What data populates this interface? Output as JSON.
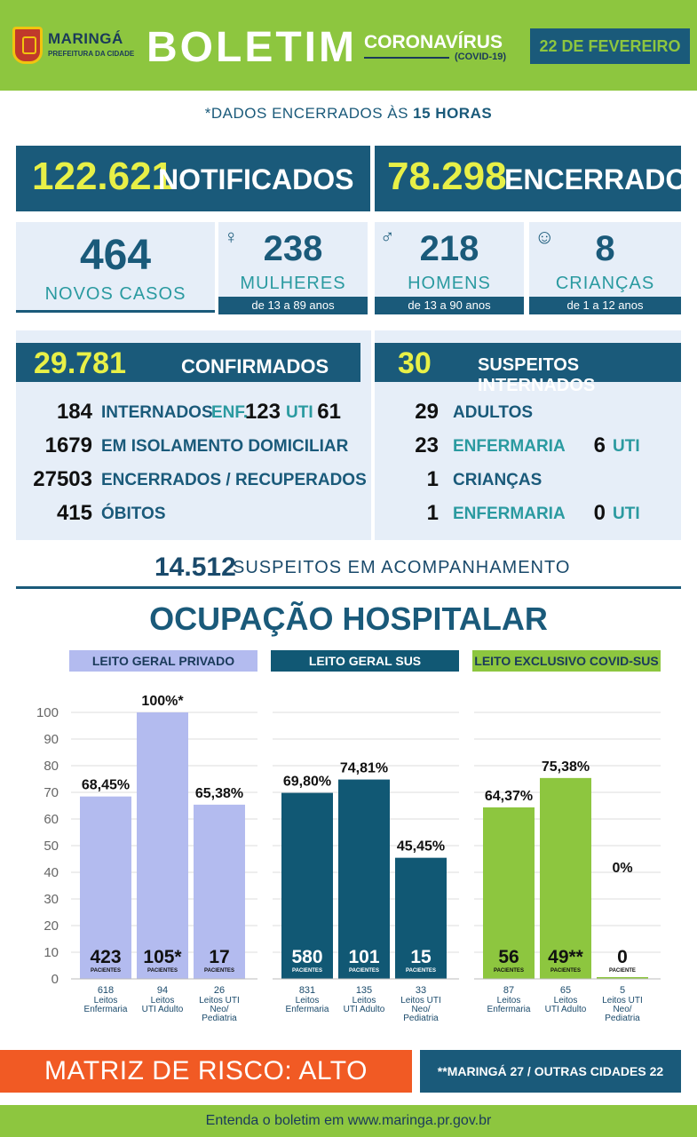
{
  "header": {
    "city": "MARINGÁ",
    "prefeitura": "PREFEITURA DA CIDADE",
    "title": "BOLETIM",
    "subtitle": "CORONAVÍRUS",
    "subtitle2": "(COVID-19)",
    "date": "22 DE FEVEREIRO"
  },
  "dados_prefix": "*DADOS ENCERRADOS ÀS ",
  "dados_hora": "15 HORAS",
  "notificados": {
    "value": "122.621",
    "label": "NOTIFICADOS"
  },
  "encerrados": {
    "value": "78.298",
    "label": "ENCERRADOS"
  },
  "novos": {
    "value": "464",
    "label": "NOVOS CASOS"
  },
  "mulheres": {
    "value": "238",
    "label": "MULHERES",
    "age": "de 13 a 89 anos"
  },
  "homens": {
    "value": "218",
    "label": "HOMENS",
    "age": "de 13 a 90 anos"
  },
  "criancas": {
    "value": "8",
    "label": "CRIANÇAS",
    "age": "de 1 a 12 anos"
  },
  "confirmados": {
    "value": "29.781",
    "label": "CONFIRMADOS",
    "rows": [
      {
        "n": "184",
        "t": "INTERNADOS"
      },
      {
        "n": "1679",
        "t": "EM ISOLAMENTO DOMICILIAR"
      },
      {
        "n": "27503",
        "t": "ENCERRADOS / RECUPERADOS"
      },
      {
        "n": "415",
        "t": "ÓBITOS"
      }
    ],
    "enf_label": "ENF.",
    "enf_value": "123",
    "uti_label": "UTI",
    "uti_value": "61"
  },
  "suspeitos": {
    "value": "30",
    "label": "SUSPEITOS INTERNADOS",
    "rows": [
      {
        "n": "29",
        "t": "ADULTOS"
      },
      {
        "n": "23",
        "t": "ENFERMARIA",
        "n2": "6",
        "t2": "UTI"
      },
      {
        "n": "1",
        "t": "CRIANÇAS"
      },
      {
        "n": "1",
        "t": "ENFERMARIA",
        "n2": "0",
        "t2": "UTI"
      }
    ]
  },
  "acompanhamento": {
    "value": "14.512",
    "label": "SUSPEITOS EM ACOMPANHAMENTO"
  },
  "ocupacao_title": "OCUPAÇÃO HOSPITALAR",
  "categories": [
    "LEITO GERAL PRIVADO",
    "LEITO GERAL SUS",
    "LEITO EXCLUSIVO COVID-SUS"
  ],
  "colors": {
    "privado": "#b3bbef",
    "sus": "#115874",
    "covid": "#8dc63f",
    "navy": "#1a5a7a",
    "orange": "#f15a24"
  },
  "chart_data": {
    "type": "bar",
    "ylim": [
      0,
      100
    ],
    "yticks": [
      0,
      10,
      20,
      30,
      40,
      50,
      60,
      70,
      80,
      90,
      100
    ],
    "groups": [
      {
        "name": "LEITO GERAL PRIVADO",
        "bars": [
          {
            "value": 68.45,
            "label": "68,45%",
            "patients": "423",
            "beds": "618",
            "desc": [
              "Leitos",
              "Enfermaria"
            ]
          },
          {
            "value": 100,
            "label": "100%*",
            "patients": "105*",
            "beds": "94",
            "desc": [
              "Leitos",
              "UTI Adulto"
            ]
          },
          {
            "value": 65.38,
            "label": "65,38%",
            "patients": "17",
            "beds": "26",
            "desc": [
              "Leitos UTI",
              "Neo/",
              "Pediatria"
            ]
          }
        ]
      },
      {
        "name": "LEITO GERAL SUS",
        "bars": [
          {
            "value": 69.8,
            "label": "69,80%",
            "patients": "580",
            "beds": "831",
            "desc": [
              "Leitos",
              "Enfermaria"
            ]
          },
          {
            "value": 74.81,
            "label": "74,81%",
            "patients": "101",
            "beds": "135",
            "desc": [
              "Leitos",
              "UTI Adulto"
            ]
          },
          {
            "value": 45.45,
            "label": "45,45%",
            "patients": "15",
            "beds": "33",
            "desc": [
              "Leitos UTI",
              "Neo/",
              "Pediatria"
            ]
          }
        ]
      },
      {
        "name": "LEITO EXCLUSIVO COVID-SUS",
        "bars": [
          {
            "value": 64.37,
            "label": "64,37%",
            "patients": "56",
            "beds": "87",
            "desc": [
              "Leitos",
              "Enfermaria"
            ]
          },
          {
            "value": 75.38,
            "label": "75,38%",
            "patients": "49**",
            "beds": "65",
            "desc": [
              "Leitos",
              "UTI Adulto"
            ]
          },
          {
            "value": 0,
            "label": "0%",
            "patients": "0",
            "beds": "5",
            "desc": [
              "Leitos UTI",
              "Neo/",
              "Pediatria"
            ],
            "patients_word": "PACIENTE"
          }
        ]
      }
    ],
    "patients_word": "PACIENTES"
  },
  "risco": "MATRIZ DE RISCO: ALTO",
  "nota": "**MARINGÁ 27 / OUTRAS CIDADES 22",
  "rodape": "Entenda o boletim em www.maringa.pr.gov.br"
}
